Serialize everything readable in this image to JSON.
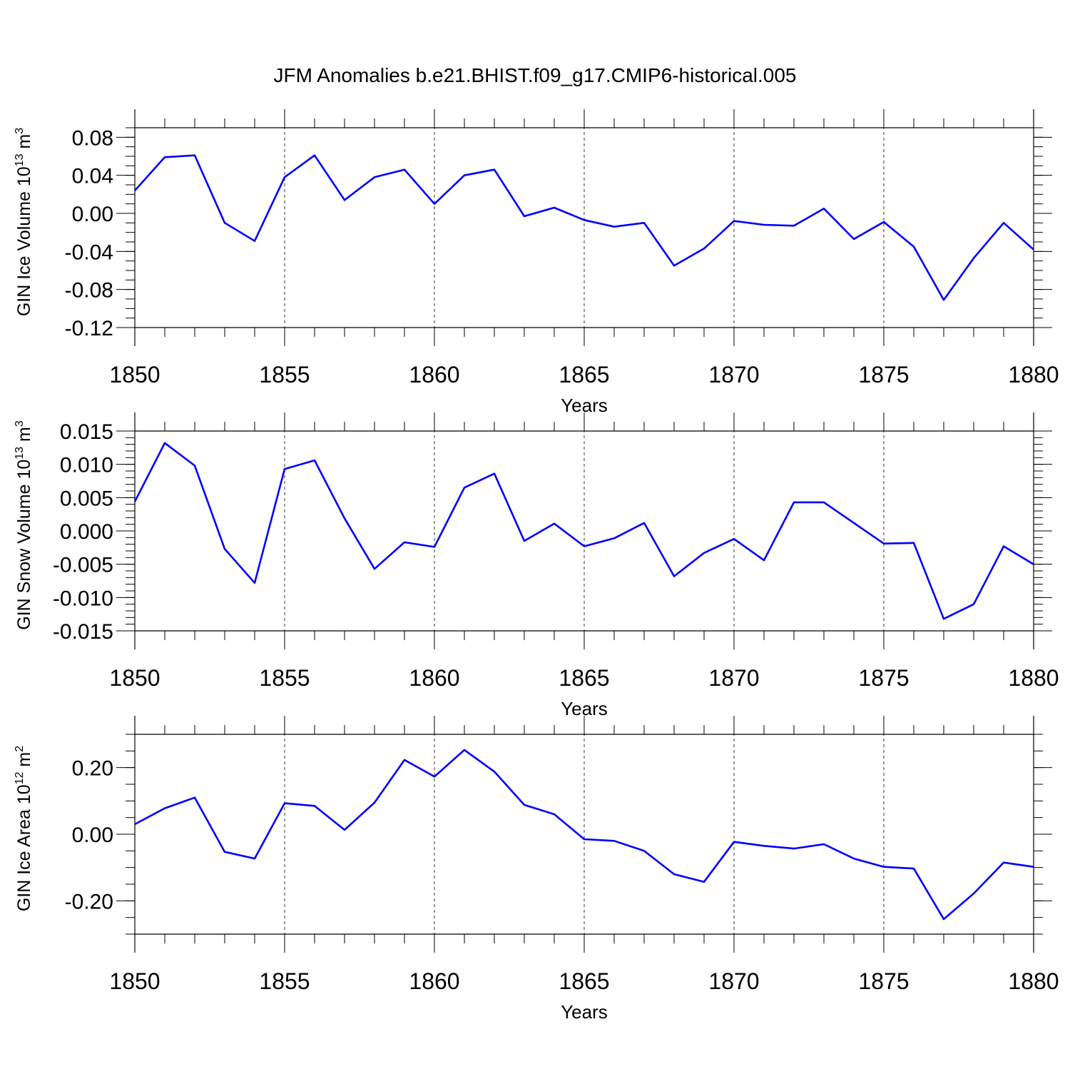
{
  "title": "JFM Anomalies b.e21.BHIST.f09_g17.CMIP6-historical.005",
  "colors": {
    "series": "#0000ff",
    "axis": "#000000",
    "grid": "#000000"
  },
  "chart_data": [
    {
      "type": "line",
      "xlabel": "Years",
      "ylabel": {
        "text": "GIN Ice Volume 10",
        "exp": "13",
        "unit": " m",
        "unit_exp": "3"
      },
      "xlim": [
        1850,
        1880
      ],
      "ylim": [
        -0.12,
        0.09
      ],
      "xticks": [
        "1850",
        "1855",
        "1860",
        "1865",
        "1870",
        "1875",
        "1880"
      ],
      "yticks": [
        "0.08",
        "0.04",
        "0.00",
        "-0.04",
        "-0.08",
        "-0.12"
      ],
      "ytick_values": [
        0.08,
        0.04,
        0.0,
        -0.04,
        -0.08,
        -0.12
      ],
      "grid": "vertical dashed at major x ticks",
      "x": [
        1850,
        1851,
        1852,
        1853,
        1854,
        1855,
        1856,
        1857,
        1858,
        1859,
        1860,
        1861,
        1862,
        1863,
        1864,
        1865,
        1866,
        1867,
        1868,
        1869,
        1870,
        1871,
        1872,
        1873,
        1874,
        1875,
        1876,
        1877,
        1878,
        1879,
        1880
      ],
      "series": [
        {
          "values": [
            0.024,
            0.059,
            0.061,
            -0.01,
            -0.029,
            0.038,
            0.061,
            0.014,
            0.038,
            0.046,
            0.01,
            0.04,
            0.046,
            -0.003,
            0.006,
            -0.007,
            -0.014,
            -0.01,
            -0.055,
            -0.037,
            -0.008,
            -0.012,
            -0.013,
            0.005,
            -0.027,
            -0.009,
            -0.035,
            -0.091,
            -0.047,
            -0.01,
            -0.038
          ]
        }
      ]
    },
    {
      "type": "line",
      "xlabel": "Years",
      "ylabel": {
        "text": "GIN Snow Volume 10",
        "exp": "13",
        "unit": " m",
        "unit_exp": "3"
      },
      "xlim": [
        1850,
        1880
      ],
      "ylim": [
        -0.015,
        0.015
      ],
      "xticks": [
        "1850",
        "1855",
        "1860",
        "1865",
        "1870",
        "1875",
        "1880"
      ],
      "yticks": [
        "0.015",
        "0.010",
        "0.005",
        "0.000",
        "-0.005",
        "-0.010",
        "-0.015"
      ],
      "ytick_values": [
        0.015,
        0.01,
        0.005,
        0.0,
        -0.005,
        -0.01,
        -0.015
      ],
      "grid": "vertical dashed at major x ticks",
      "x": [
        1850,
        1851,
        1852,
        1853,
        1854,
        1855,
        1856,
        1857,
        1858,
        1859,
        1860,
        1861,
        1862,
        1863,
        1864,
        1865,
        1866,
        1867,
        1868,
        1869,
        1870,
        1871,
        1872,
        1873,
        1874,
        1875,
        1876,
        1877,
        1878,
        1879,
        1880
      ],
      "series": [
        {
          "values": [
            0.0044,
            0.0132,
            0.0098,
            -0.0027,
            -0.0078,
            0.0093,
            0.0106,
            0.0019,
            -0.0057,
            -0.0017,
            -0.0024,
            0.0065,
            0.0086,
            -0.0015,
            0.0011,
            -0.0023,
            -0.0011,
            0.0012,
            -0.0068,
            -0.0033,
            -0.0012,
            -0.0044,
            0.0043,
            0.0043,
            0.0012,
            -0.0019,
            -0.0018,
            -0.0132,
            -0.011,
            -0.0023,
            -0.005
          ]
        }
      ]
    },
    {
      "type": "line",
      "xlabel": "Years",
      "ylabel": {
        "text": "GIN Ice Area 10",
        "exp": "12",
        "unit": " m",
        "unit_exp": "2"
      },
      "xlim": [
        1850,
        1880
      ],
      "ylim": [
        -0.3,
        0.3
      ],
      "xticks": [
        "1850",
        "1855",
        "1860",
        "1865",
        "1870",
        "1875",
        "1880"
      ],
      "yticks": [
        "0.20",
        "0.00",
        "-0.20"
      ],
      "ytick_values": [
        0.2,
        0.0,
        -0.2
      ],
      "grid": "vertical dashed at major x ticks",
      "x": [
        1850,
        1851,
        1852,
        1853,
        1854,
        1855,
        1856,
        1857,
        1858,
        1859,
        1860,
        1861,
        1862,
        1863,
        1864,
        1865,
        1866,
        1867,
        1868,
        1869,
        1870,
        1871,
        1872,
        1873,
        1874,
        1875,
        1876,
        1877,
        1878,
        1879,
        1880
      ],
      "series": [
        {
          "values": [
            0.03,
            0.078,
            0.11,
            -0.053,
            -0.073,
            0.093,
            0.085,
            0.013,
            0.095,
            0.223,
            0.173,
            0.253,
            0.188,
            0.088,
            0.06,
            -0.015,
            -0.02,
            -0.05,
            -0.12,
            -0.143,
            -0.023,
            -0.035,
            -0.043,
            -0.03,
            -0.073,
            -0.098,
            -0.103,
            -0.255,
            -0.178,
            -0.085,
            -0.098
          ]
        }
      ]
    }
  ]
}
